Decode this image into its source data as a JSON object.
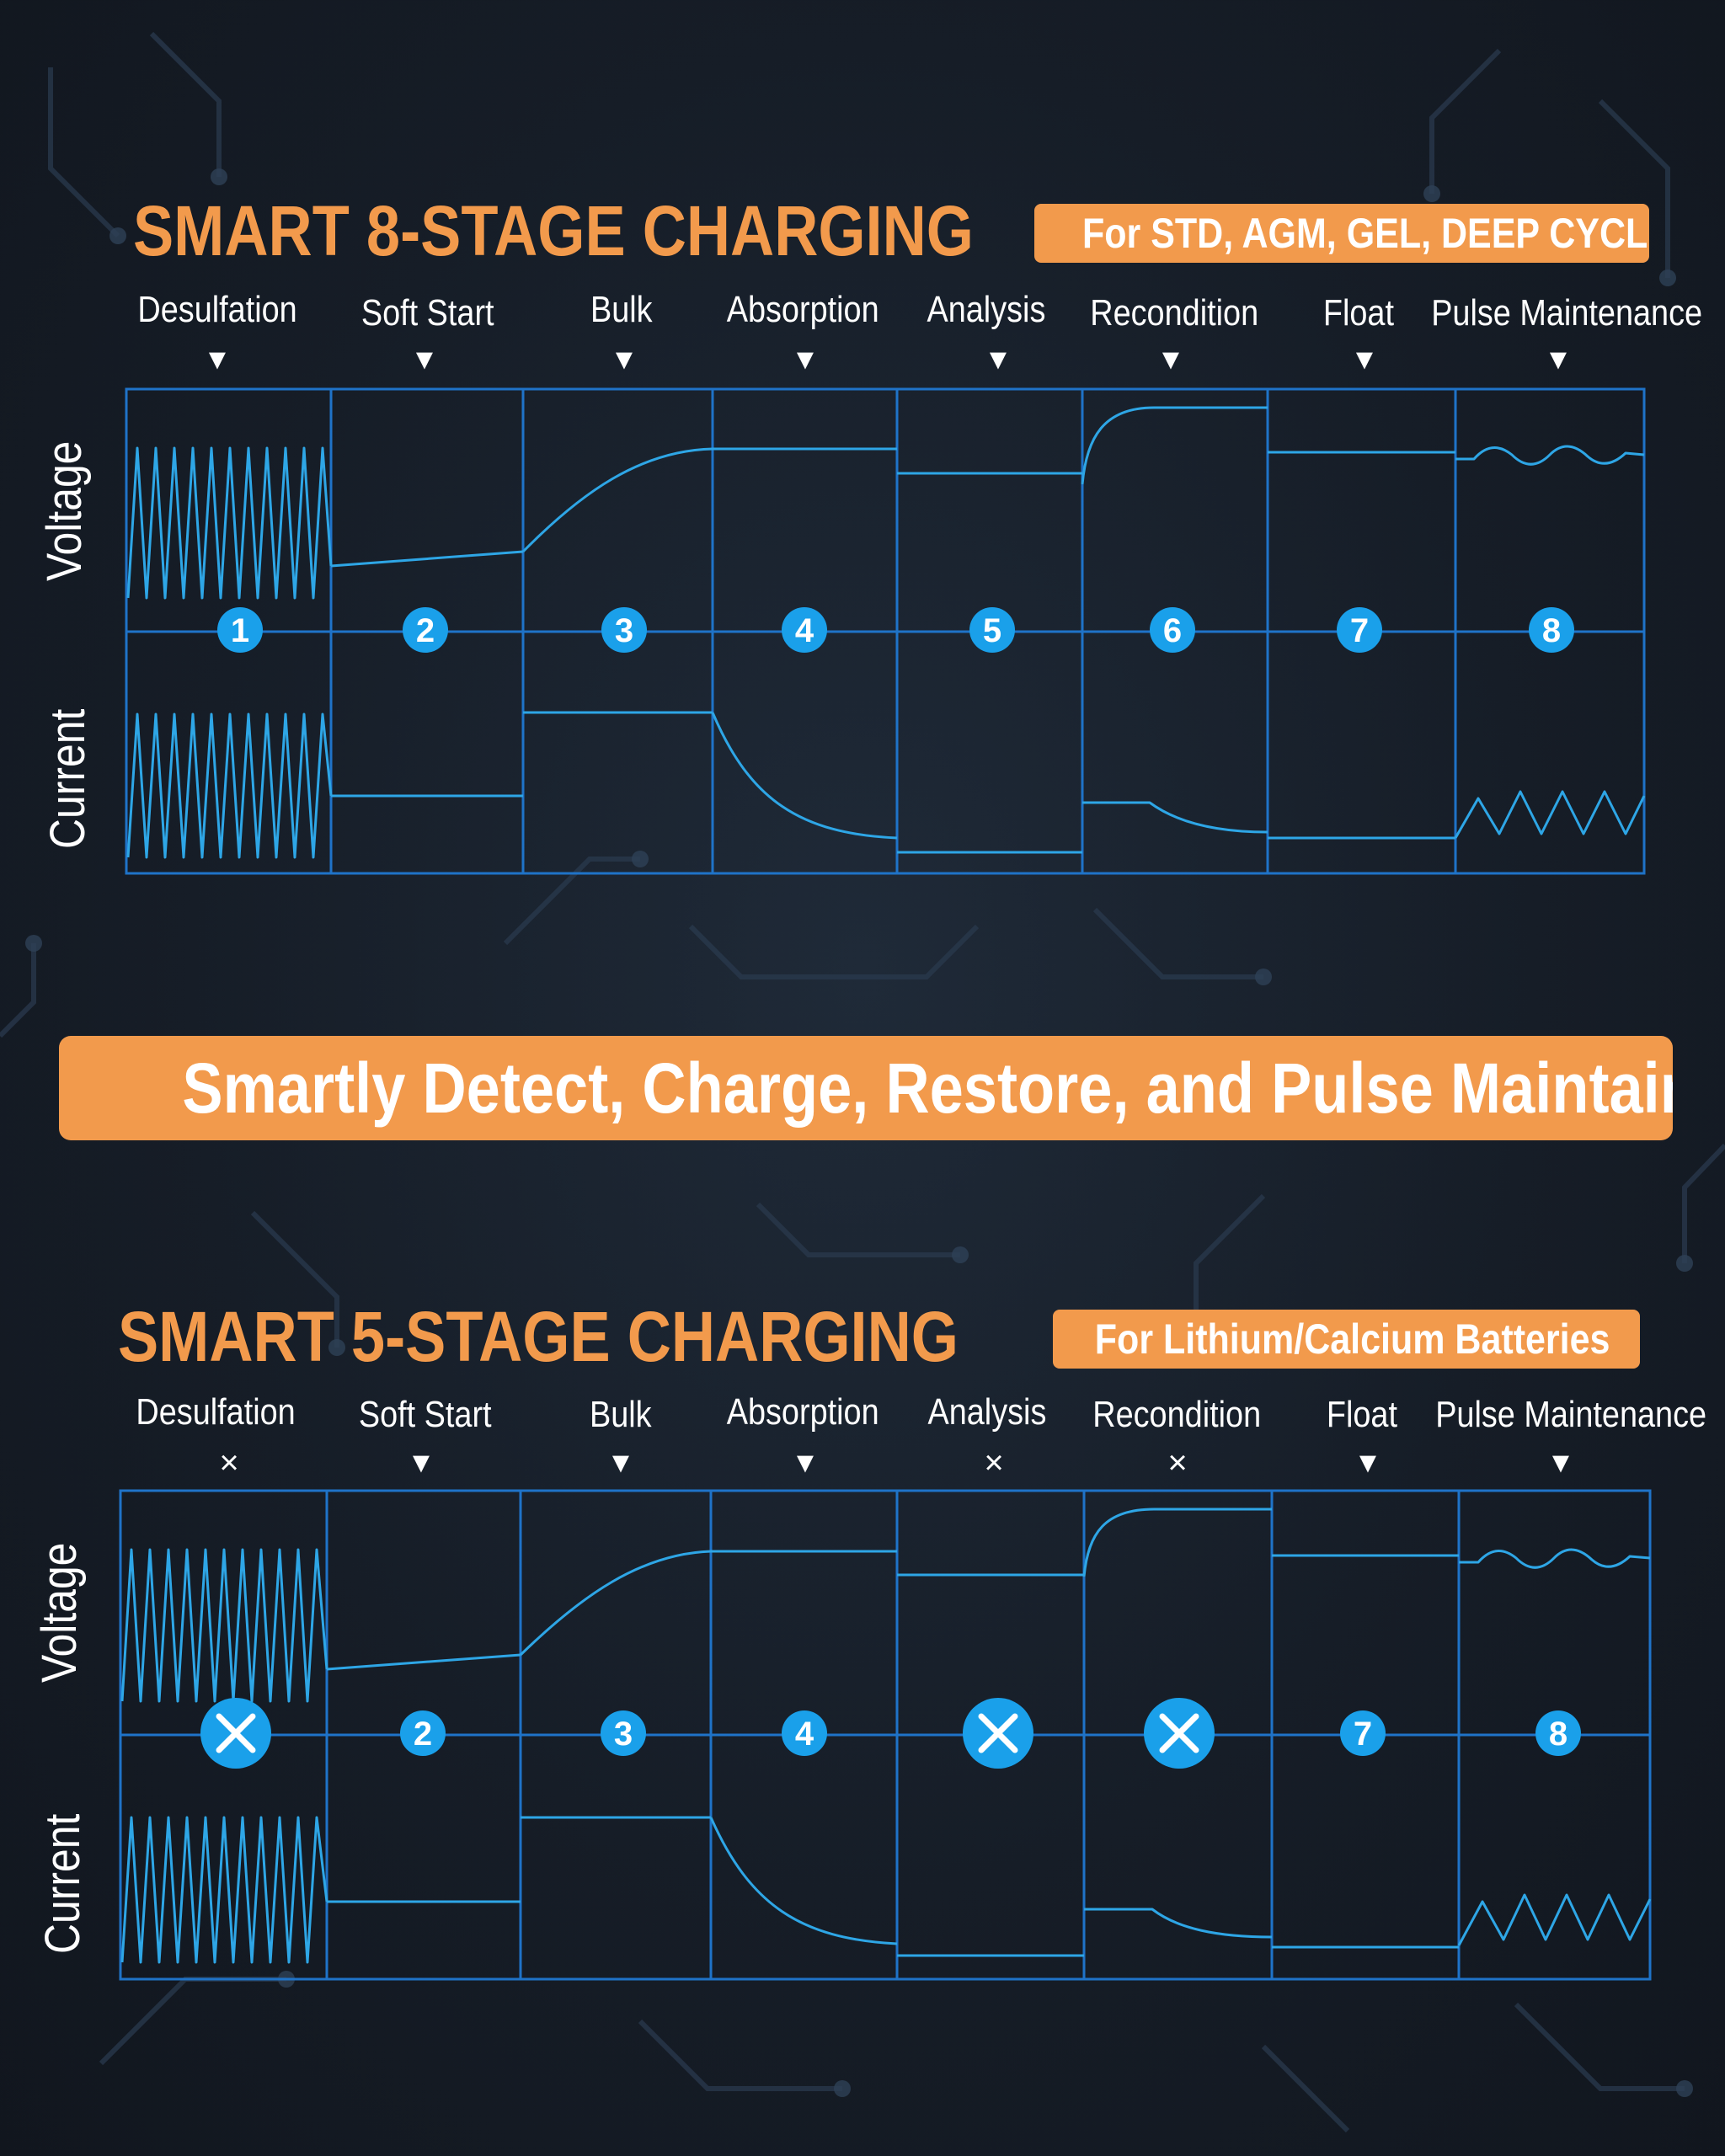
{
  "colors": {
    "accent": "#f29a4c",
    "grid": "#1f73c8",
    "wave": "#2ea6e6",
    "circle": "#1aa0ea"
  },
  "top": {
    "title": "SMART 8-STAGE CHARGING",
    "badge": "For STD, AGM, GEL, DEEP CYCLE",
    "axis": {
      "voltage": "Voltage",
      "current": "Current"
    },
    "stages": [
      {
        "label": "Desulfation",
        "marker": "▼",
        "number": "1",
        "enabled": true
      },
      {
        "label": "Soft Start",
        "marker": "▼",
        "number": "2",
        "enabled": true
      },
      {
        "label": "Bulk",
        "marker": "▼",
        "number": "3",
        "enabled": true
      },
      {
        "label": "Absorption",
        "marker": "▼",
        "number": "4",
        "enabled": true
      },
      {
        "label": "Analysis",
        "marker": "▼",
        "number": "5",
        "enabled": true
      },
      {
        "label": "Recondition",
        "marker": "▼",
        "number": "6",
        "enabled": true
      },
      {
        "label": "Float",
        "marker": "▼",
        "number": "7",
        "enabled": true
      },
      {
        "label": "Pulse Maintenance",
        "marker": "▼",
        "number": "8",
        "enabled": true
      }
    ]
  },
  "banner": "Smartly Detect, Charge, Restore, and Pulse Maintain",
  "bottom": {
    "title": "SMART 5-STAGE CHARGING",
    "badge": "For Lithium/Calcium Batteries",
    "axis": {
      "voltage": "Voltage",
      "current": "Current"
    },
    "stages": [
      {
        "label": "Desulfation",
        "marker": "×",
        "number": "",
        "enabled": false
      },
      {
        "label": "Soft Start",
        "marker": "▼",
        "number": "2",
        "enabled": true
      },
      {
        "label": "Bulk",
        "marker": "▼",
        "number": "3",
        "enabled": true
      },
      {
        "label": "Absorption",
        "marker": "▼",
        "number": "4",
        "enabled": true
      },
      {
        "label": "Analysis",
        "marker": "×",
        "number": "",
        "enabled": false
      },
      {
        "label": "Recondition",
        "marker": "×",
        "number": "",
        "enabled": false
      },
      {
        "label": "Float",
        "marker": "▼",
        "number": "7",
        "enabled": true
      },
      {
        "label": "Pulse Maintenance",
        "marker": "▼",
        "number": "8",
        "enabled": true
      }
    ]
  }
}
